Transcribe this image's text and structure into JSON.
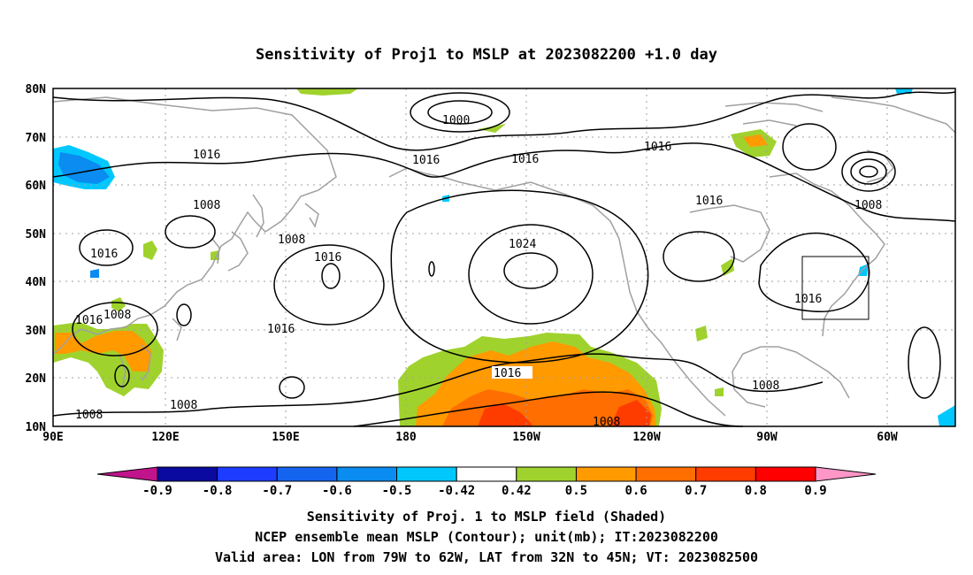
{
  "title": "Sensitivity of Proj1 to MSLP at 2023082200 +1.0 day",
  "map": {
    "lat_ticks": [
      "80N",
      "70N",
      "60N",
      "50N",
      "40N",
      "30N",
      "20N",
      "10N"
    ],
    "lon_ticks": [
      "90E",
      "120E",
      "150E",
      "180",
      "150W",
      "120W",
      "90W",
      "60W"
    ],
    "valid_box": {
      "lon": [
        "79W",
        "62W"
      ],
      "lat": [
        "32N",
        "45N"
      ]
    },
    "contour_labels": [
      {
        "key": "l1000",
        "text": "1000"
      },
      {
        "key": "l1016a",
        "text": "1016"
      },
      {
        "key": "l1016b",
        "text": "1016"
      },
      {
        "key": "l1016c",
        "text": "1016"
      },
      {
        "key": "l1016d",
        "text": "1016"
      },
      {
        "key": "l1016e",
        "text": "1016"
      },
      {
        "key": "l1016f",
        "text": "1016"
      },
      {
        "key": "l1016g",
        "text": "1016"
      },
      {
        "key": "l1016h",
        "text": "1016"
      },
      {
        "key": "l1016i",
        "text": "1016"
      },
      {
        "key": "l1016j",
        "text": "1016"
      },
      {
        "key": "l1024",
        "text": "1024"
      },
      {
        "key": "l1008a",
        "text": "1008"
      },
      {
        "key": "l1008b",
        "text": "1008"
      },
      {
        "key": "l1008c",
        "text": "1008"
      },
      {
        "key": "l1008d",
        "text": "1008"
      },
      {
        "key": "l1008e",
        "text": "1008"
      },
      {
        "key": "l1008f",
        "text": "1008"
      },
      {
        "key": "l1008g",
        "text": "1008"
      },
      {
        "key": "l1008h",
        "text": "1008"
      }
    ]
  },
  "colorbar": {
    "segments": [
      {
        "label": "-0.9",
        "color": "#c0148c"
      },
      {
        "label": "-0.8",
        "color": "#0a0aa0"
      },
      {
        "label": "-0.7",
        "color": "#1e3cff"
      },
      {
        "label": "-0.6",
        "color": "#1464f0"
      },
      {
        "label": "-0.5",
        "color": "#0a8cf0"
      },
      {
        "label": "-0.42",
        "color": "#00c8ff"
      },
      {
        "label": "0.42",
        "color": "#ffffff"
      },
      {
        "label": "0.5",
        "color": "#a0d22d"
      },
      {
        "label": "0.6",
        "color": "#ff9a00"
      },
      {
        "label": "0.7",
        "color": "#ff6e00"
      },
      {
        "label": "0.8",
        "color": "#ff3c00"
      },
      {
        "label": "0.9",
        "color": "#ff0000"
      },
      {
        "label": "",
        "color": "#ff96c8"
      }
    ]
  },
  "caption": {
    "line1": "Sensitivity of Proj. 1 to MSLP field (Shaded)",
    "line2": "NCEP ensemble mean MSLP (Contour); unit(mb); IT:2023082200",
    "line3": "Valid area: LON from 79W to 62W, LAT from 32N to 45N; VT: 2023082500"
  },
  "colors": {
    "contour": "#000000",
    "coast": "#a0a0a0",
    "grid": "#a0a0a0"
  }
}
